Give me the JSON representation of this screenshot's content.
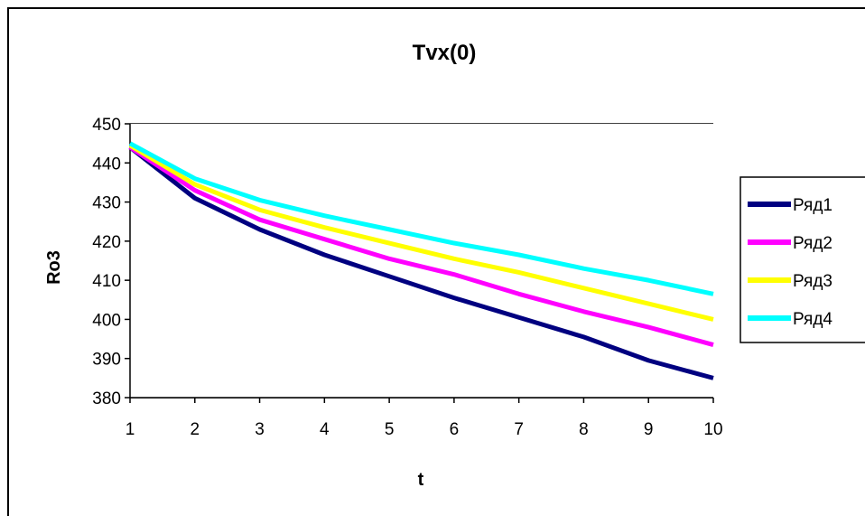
{
  "chart_data": {
    "type": "line",
    "title": "Tvx(0)",
    "xlabel": "t",
    "ylabel": "Ro3",
    "x": [
      1,
      2,
      3,
      4,
      5,
      6,
      7,
      8,
      9,
      10
    ],
    "ylim": [
      380,
      450
    ],
    "yticks": [
      380,
      390,
      400,
      410,
      420,
      430,
      440,
      450
    ],
    "grid": "horizontal",
    "legend_position": "right",
    "plot_background": "#ffffff",
    "series": [
      {
        "name": "Ряд1",
        "color": "#000080",
        "values": [
          444,
          431,
          423,
          416.5,
          411,
          405.5,
          400.5,
          395.5,
          389.5,
          385
        ]
      },
      {
        "name": "Ряд2",
        "color": "#ff00ff",
        "values": [
          444,
          433,
          425.5,
          420.5,
          415.5,
          411.5,
          406.5,
          402,
          398,
          393.5
        ]
      },
      {
        "name": "Ряд3",
        "color": "#ffff00",
        "values": [
          444.5,
          434.5,
          428,
          423.5,
          419.5,
          415.5,
          412,
          408,
          404,
          400
        ]
      },
      {
        "name": "Ряд4",
        "color": "#00ffff",
        "values": [
          445,
          436,
          430.5,
          426.5,
          423,
          419.5,
          416.5,
          413,
          410,
          406.5
        ]
      }
    ]
  }
}
